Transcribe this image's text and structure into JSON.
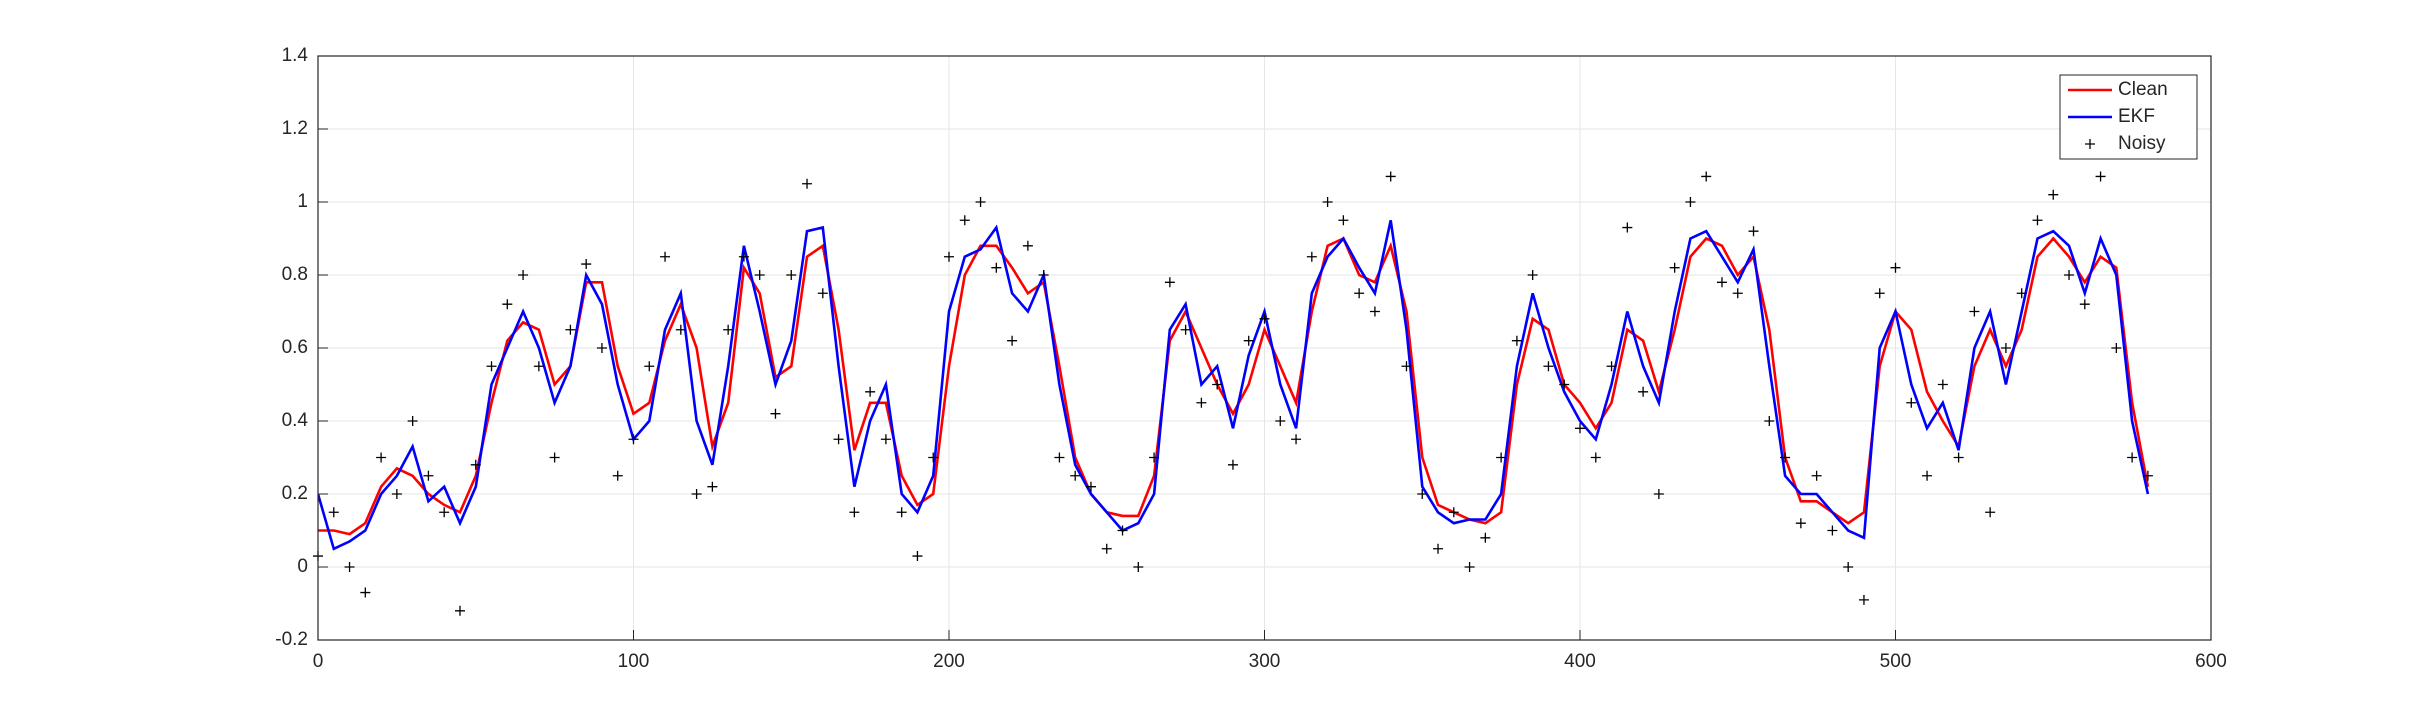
{
  "chart_data": {
    "type": "line",
    "x": [
      0,
      5,
      10,
      15,
      20,
      25,
      30,
      35,
      40,
      45,
      50,
      55,
      60,
      65,
      70,
      75,
      80,
      85,
      90,
      95,
      100,
      105,
      110,
      115,
      120,
      125,
      130,
      135,
      140,
      145,
      150,
      155,
      160,
      165,
      170,
      175,
      180,
      185,
      190,
      195,
      200,
      205,
      210,
      215,
      220,
      225,
      230,
      235,
      240,
      245,
      250,
      255,
      260,
      265,
      270,
      275,
      280,
      285,
      290,
      295,
      300,
      305,
      310,
      315,
      320,
      325,
      330,
      335,
      340,
      345,
      350,
      355,
      360,
      365,
      370,
      375,
      380,
      385,
      390,
      395,
      400,
      405,
      410,
      415,
      420,
      425,
      430,
      435,
      440,
      445,
      450,
      455,
      460,
      465,
      470,
      475,
      480,
      485,
      490,
      495,
      500,
      505,
      510,
      515,
      520,
      525,
      530,
      535,
      540,
      545,
      550,
      555,
      560,
      565,
      570,
      575,
      580
    ],
    "series": [
      {
        "name": "Clean",
        "color": "#ff0000",
        "style": "line",
        "values": [
          0.1,
          0.1,
          0.09,
          0.12,
          0.22,
          0.27,
          0.25,
          0.2,
          0.17,
          0.15,
          0.25,
          0.45,
          0.62,
          0.67,
          0.65,
          0.5,
          0.55,
          0.78,
          0.78,
          0.55,
          0.42,
          0.45,
          0.62,
          0.72,
          0.6,
          0.33,
          0.45,
          0.82,
          0.75,
          0.52,
          0.55,
          0.85,
          0.88,
          0.65,
          0.32,
          0.45,
          0.45,
          0.25,
          0.17,
          0.2,
          0.55,
          0.8,
          0.88,
          0.88,
          0.82,
          0.75,
          0.78,
          0.55,
          0.3,
          0.2,
          0.15,
          0.14,
          0.14,
          0.25,
          0.62,
          0.7,
          0.6,
          0.5,
          0.42,
          0.5,
          0.65,
          0.55,
          0.45,
          0.7,
          0.88,
          0.9,
          0.8,
          0.78,
          0.88,
          0.7,
          0.3,
          0.17,
          0.15,
          0.13,
          0.12,
          0.15,
          0.5,
          0.68,
          0.65,
          0.5,
          0.45,
          0.38,
          0.45,
          0.65,
          0.62,
          0.48,
          0.65,
          0.85,
          0.9,
          0.88,
          0.8,
          0.85,
          0.65,
          0.3,
          0.18,
          0.18,
          0.15,
          0.12,
          0.15,
          0.55,
          0.7,
          0.65,
          0.48,
          0.4,
          0.33,
          0.55,
          0.65,
          0.55,
          0.65,
          0.85,
          0.9,
          0.85,
          0.78,
          0.85,
          0.82,
          0.45,
          0.22
        ]
      },
      {
        "name": "EKF",
        "color": "#0000ff",
        "style": "line",
        "values": [
          0.2,
          0.05,
          0.07,
          0.1,
          0.2,
          0.25,
          0.33,
          0.18,
          0.22,
          0.12,
          0.22,
          0.5,
          0.6,
          0.7,
          0.6,
          0.45,
          0.55,
          0.8,
          0.72,
          0.5,
          0.35,
          0.4,
          0.65,
          0.75,
          0.4,
          0.28,
          0.55,
          0.88,
          0.7,
          0.5,
          0.62,
          0.92,
          0.93,
          0.55,
          0.22,
          0.4,
          0.5,
          0.2,
          0.15,
          0.25,
          0.7,
          0.85,
          0.87,
          0.93,
          0.75,
          0.7,
          0.8,
          0.5,
          0.28,
          0.2,
          0.15,
          0.1,
          0.12,
          0.2,
          0.65,
          0.72,
          0.5,
          0.55,
          0.38,
          0.58,
          0.7,
          0.5,
          0.38,
          0.75,
          0.85,
          0.9,
          0.82,
          0.75,
          0.95,
          0.65,
          0.22,
          0.15,
          0.12,
          0.13,
          0.13,
          0.2,
          0.55,
          0.75,
          0.6,
          0.48,
          0.4,
          0.35,
          0.5,
          0.7,
          0.55,
          0.45,
          0.7,
          0.9,
          0.92,
          0.85,
          0.78,
          0.87,
          0.55,
          0.25,
          0.2,
          0.2,
          0.15,
          0.1,
          0.08,
          0.6,
          0.7,
          0.5,
          0.38,
          0.45,
          0.32,
          0.6,
          0.7,
          0.5,
          0.7,
          0.9,
          0.92,
          0.88,
          0.75,
          0.9,
          0.8,
          0.4,
          0.2
        ]
      },
      {
        "name": "Noisy",
        "color": "#000000",
        "style": "plus",
        "values": [
          0.03,
          0.15,
          0.0,
          -0.07,
          0.3,
          0.2,
          0.4,
          0.25,
          0.15,
          -0.12,
          0.28,
          0.55,
          0.72,
          0.8,
          0.55,
          0.3,
          0.65,
          0.83,
          0.6,
          0.25,
          0.35,
          0.55,
          0.85,
          0.65,
          0.2,
          0.22,
          0.65,
          0.85,
          0.8,
          0.42,
          0.8,
          1.05,
          0.75,
          0.35,
          0.15,
          0.48,
          0.35,
          0.15,
          0.03,
          0.3,
          0.85,
          0.95,
          1.0,
          0.82,
          0.62,
          0.88,
          0.8,
          0.3,
          0.25,
          0.22,
          0.05,
          0.1,
          0.0,
          0.3,
          0.78,
          0.65,
          0.45,
          0.5,
          0.28,
          0.62,
          0.68,
          0.4,
          0.35,
          0.85,
          1.0,
          0.95,
          0.75,
          0.7,
          1.07,
          0.55,
          0.2,
          0.05,
          0.15,
          0.0,
          0.08,
          0.3,
          0.62,
          0.8,
          0.55,
          0.5,
          0.38,
          0.3,
          0.55,
          0.93,
          0.48,
          0.2,
          0.82,
          1.0,
          1.07,
          0.78,
          0.75,
          0.92,
          0.4,
          0.3,
          0.12,
          0.25,
          0.1,
          0.0,
          -0.09,
          0.75,
          0.82,
          0.45,
          0.25,
          0.5,
          0.3,
          0.7,
          0.15,
          0.6,
          0.75,
          0.95,
          1.02,
          0.8,
          0.72,
          1.07,
          0.6,
          0.3,
          0.25
        ]
      }
    ],
    "xlim": [
      0,
      600
    ],
    "xticks": [
      0,
      100,
      200,
      300,
      400,
      500,
      600
    ],
    "ylim": [
      -0.2,
      1.4
    ],
    "yticks": [
      -0.2,
      0,
      0.2,
      0.4,
      0.6,
      0.8,
      1,
      1.2,
      1.4
    ],
    "grid": true,
    "legend": "northeast"
  }
}
